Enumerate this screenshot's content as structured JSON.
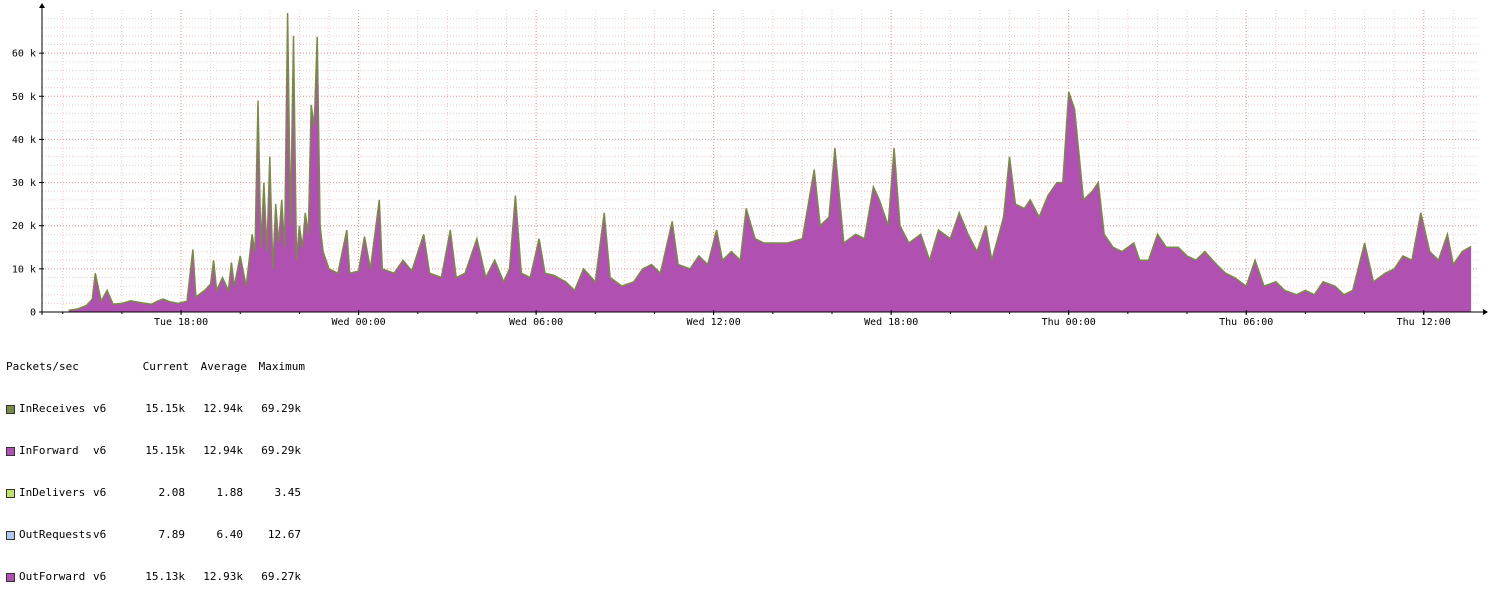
{
  "chart_data": {
    "type": "area",
    "ylim": [
      0,
      70000
    ],
    "y_ticks": [
      {
        "value": 0,
        "label": "0"
      },
      {
        "value": 10000,
        "label": "10 k"
      },
      {
        "value": 20000,
        "label": "20 k"
      },
      {
        "value": 30000,
        "label": "30 k"
      },
      {
        "value": 40000,
        "label": "40 k"
      },
      {
        "value": 50000,
        "label": "50 k"
      },
      {
        "value": 60000,
        "label": "60 k"
      }
    ],
    "x_range_hours": [
      -4.7,
      43.8
    ],
    "x_ticks": [
      {
        "hour": 0,
        "label": "Tue 18:00"
      },
      {
        "hour": 6,
        "label": "Wed 00:00"
      },
      {
        "hour": 12,
        "label": "Wed 06:00"
      },
      {
        "hour": 18,
        "label": "Wed 12:00"
      },
      {
        "hour": 24,
        "label": "Wed 18:00"
      },
      {
        "hour": 30,
        "label": "Thu 00:00"
      },
      {
        "hour": 36,
        "label": "Thu 06:00"
      },
      {
        "hour": 42,
        "label": "Thu 12:00"
      }
    ],
    "grid": true,
    "colors": {
      "InReceives": "#7a8a4a",
      "InForward": "#b050b0",
      "InDelivers": "#c0e070",
      "OutRequests": "#b0c8f0",
      "OutForward": "#b050b0",
      "grid_minor": "#f0c8c8",
      "grid_major": "#e89898"
    },
    "series_points": [
      [
        -3.8,
        400
      ],
      [
        -3.5,
        700
      ],
      [
        -3.2,
        1500
      ],
      [
        -3.0,
        3000
      ],
      [
        -2.9,
        9000
      ],
      [
        -2.7,
        2500
      ],
      [
        -2.5,
        5000
      ],
      [
        -2.3,
        1800
      ],
      [
        -2.0,
        2000
      ],
      [
        -1.7,
        2600
      ],
      [
        -1.4,
        2200
      ],
      [
        -1.0,
        1800
      ],
      [
        -0.8,
        2500
      ],
      [
        -0.6,
        3000
      ],
      [
        -0.4,
        2400
      ],
      [
        -0.1,
        2000
      ],
      [
        0.2,
        2500
      ],
      [
        0.4,
        14500
      ],
      [
        0.5,
        3500
      ],
      [
        0.8,
        5000
      ],
      [
        1.0,
        6500
      ],
      [
        1.1,
        12000
      ],
      [
        1.2,
        5000
      ],
      [
        1.4,
        8000
      ],
      [
        1.6,
        5000
      ],
      [
        1.7,
        11500
      ],
      [
        1.8,
        6000
      ],
      [
        2.0,
        13000
      ],
      [
        2.2,
        6000
      ],
      [
        2.4,
        18000
      ],
      [
        2.5,
        14000
      ],
      [
        2.6,
        49000
      ],
      [
        2.7,
        15000
      ],
      [
        2.8,
        30000
      ],
      [
        2.9,
        14000
      ],
      [
        3.0,
        36000
      ],
      [
        3.1,
        10000
      ],
      [
        3.2,
        25000
      ],
      [
        3.3,
        16000
      ],
      [
        3.4,
        26000
      ],
      [
        3.5,
        15000
      ],
      [
        3.6,
        69300
      ],
      [
        3.7,
        20000
      ],
      [
        3.8,
        64000
      ],
      [
        3.9,
        12000
      ],
      [
        4.0,
        20000
      ],
      [
        4.1,
        15000
      ],
      [
        4.2,
        23000
      ],
      [
        4.3,
        18000
      ],
      [
        4.4,
        48000
      ],
      [
        4.5,
        43000
      ],
      [
        4.6,
        63800
      ],
      [
        4.7,
        20000
      ],
      [
        4.8,
        14000
      ],
      [
        5.0,
        10000
      ],
      [
        5.3,
        9000
      ],
      [
        5.6,
        19000
      ],
      [
        5.7,
        9000
      ],
      [
        6.0,
        9500
      ],
      [
        6.2,
        17500
      ],
      [
        6.4,
        10000
      ],
      [
        6.7,
        26000
      ],
      [
        6.8,
        10000
      ],
      [
        7.2,
        9000
      ],
      [
        7.5,
        12000
      ],
      [
        7.8,
        9500
      ],
      [
        8.2,
        18000
      ],
      [
        8.4,
        9000
      ],
      [
        8.8,
        8000
      ],
      [
        9.1,
        19000
      ],
      [
        9.3,
        8000
      ],
      [
        9.6,
        9000
      ],
      [
        10.0,
        17000
      ],
      [
        10.3,
        8000
      ],
      [
        10.6,
        12000
      ],
      [
        10.9,
        7000
      ],
      [
        11.1,
        10000
      ],
      [
        11.3,
        27000
      ],
      [
        11.5,
        9000
      ],
      [
        11.8,
        8000
      ],
      [
        12.1,
        17000
      ],
      [
        12.3,
        9000
      ],
      [
        12.6,
        8500
      ],
      [
        13.0,
        7000
      ],
      [
        13.3,
        5000
      ],
      [
        13.6,
        10000
      ],
      [
        14.0,
        7000
      ],
      [
        14.3,
        23000
      ],
      [
        14.5,
        8000
      ],
      [
        14.9,
        6000
      ],
      [
        15.3,
        7000
      ],
      [
        15.6,
        10000
      ],
      [
        15.9,
        11000
      ],
      [
        16.2,
        9000
      ],
      [
        16.6,
        21000
      ],
      [
        16.8,
        11000
      ],
      [
        17.2,
        10000
      ],
      [
        17.5,
        13000
      ],
      [
        17.8,
        11000
      ],
      [
        18.1,
        19000
      ],
      [
        18.3,
        12000
      ],
      [
        18.6,
        14000
      ],
      [
        18.9,
        12000
      ],
      [
        19.1,
        24000
      ],
      [
        19.4,
        17000
      ],
      [
        19.7,
        16000
      ],
      [
        20.0,
        16000
      ],
      [
        20.3,
        16000
      ],
      [
        20.5,
        16000
      ],
      [
        21.0,
        17000
      ],
      [
        21.4,
        33000
      ],
      [
        21.6,
        20000
      ],
      [
        21.9,
        22000
      ],
      [
        22.1,
        38000
      ],
      [
        22.4,
        16000
      ],
      [
        22.8,
        18000
      ],
      [
        23.1,
        17000
      ],
      [
        23.4,
        29000
      ],
      [
        23.6,
        26000
      ],
      [
        23.9,
        20000
      ],
      [
        24.1,
        38000
      ],
      [
        24.3,
        20000
      ],
      [
        24.6,
        16000
      ],
      [
        25.0,
        18000
      ],
      [
        25.3,
        12000
      ],
      [
        25.6,
        19000
      ],
      [
        26.0,
        17000
      ],
      [
        26.3,
        23000
      ],
      [
        26.6,
        18000
      ],
      [
        26.9,
        14000
      ],
      [
        27.2,
        20000
      ],
      [
        27.4,
        12000
      ],
      [
        27.8,
        22000
      ],
      [
        28.0,
        36000
      ],
      [
        28.2,
        25000
      ],
      [
        28.5,
        24000
      ],
      [
        28.7,
        26000
      ],
      [
        29.0,
        22000
      ],
      [
        29.3,
        27000
      ],
      [
        29.6,
        30000
      ],
      [
        29.8,
        30000
      ],
      [
        30.0,
        51000
      ],
      [
        30.2,
        47000
      ],
      [
        30.5,
        26000
      ],
      [
        30.8,
        28000
      ],
      [
        31.0,
        30000
      ],
      [
        31.2,
        18000
      ],
      [
        31.5,
        15000
      ],
      [
        31.8,
        14000
      ],
      [
        32.2,
        16000
      ],
      [
        32.4,
        12000
      ],
      [
        32.7,
        12000
      ],
      [
        33.0,
        18000
      ],
      [
        33.3,
        15000
      ],
      [
        33.7,
        15000
      ],
      [
        34.0,
        13000
      ],
      [
        34.3,
        12000
      ],
      [
        34.6,
        14000
      ],
      [
        35.0,
        11000
      ],
      [
        35.3,
        9000
      ],
      [
        35.6,
        8000
      ],
      [
        36.0,
        6000
      ],
      [
        36.3,
        12000
      ],
      [
        36.6,
        6000
      ],
      [
        37.0,
        7000
      ],
      [
        37.3,
        5000
      ],
      [
        37.7,
        4000
      ],
      [
        38.0,
        5000
      ],
      [
        38.3,
        4000
      ],
      [
        38.6,
        7000
      ],
      [
        39.0,
        6000
      ],
      [
        39.3,
        4000
      ],
      [
        39.6,
        5000
      ],
      [
        40.0,
        16000
      ],
      [
        40.3,
        7000
      ],
      [
        40.7,
        9000
      ],
      [
        41.0,
        10000
      ],
      [
        41.3,
        13000
      ],
      [
        41.6,
        12000
      ],
      [
        41.9,
        23000
      ],
      [
        42.2,
        14000
      ],
      [
        42.5,
        12000
      ],
      [
        42.8,
        18000
      ],
      [
        43.0,
        11000
      ],
      [
        43.3,
        14000
      ],
      [
        43.6,
        15200
      ]
    ],
    "legend": {
      "title": "Packets/sec",
      "headers": [
        "Current",
        "Average",
        "Maximum"
      ],
      "rows": [
        {
          "name": "InReceives",
          "proto": "v6",
          "current": "15.15k",
          "average": "12.94k",
          "maximum": "69.29k",
          "color": "#7a8a4a"
        },
        {
          "name": "InForward",
          "proto": "v6",
          "current": "15.15k",
          "average": "12.94k",
          "maximum": "69.29k",
          "color": "#b050b0"
        },
        {
          "name": "InDelivers",
          "proto": "v6",
          "current": "2.08",
          "average": "1.88",
          "maximum": "3.45",
          "color": "#c0e070"
        },
        {
          "name": "OutRequests",
          "proto": "v6",
          "current": "7.89",
          "average": "6.40",
          "maximum": "12.67",
          "color": "#b0c8f0"
        },
        {
          "name": "OutForward",
          "proto": "v6",
          "current": "15.13k",
          "average": "12.93k",
          "maximum": "69.27k",
          "color": "#b050b0"
        }
      ]
    }
  }
}
